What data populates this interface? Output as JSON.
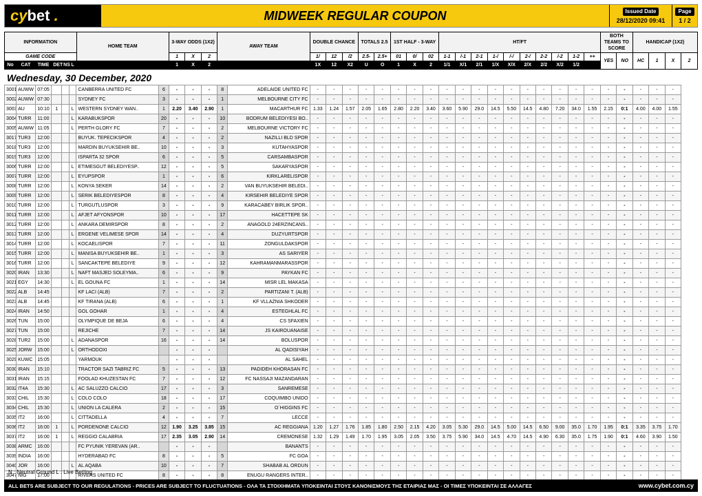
{
  "brand": {
    "logo_prefix": "cy",
    "logo_suffix": "bet",
    "title": "MIDWEEK REGULAR COUPON"
  },
  "meta": {
    "issued_label": "Issued Date",
    "issued_value": "28/12/2020 09:41",
    "page_label": "Page",
    "page_value": "1 / 2"
  },
  "date_heading": "Wednesday, 30 December, 2020",
  "header_groups": {
    "row1": {
      "information": "INFORMATION",
      "three_way": "3-WAY ODDS (1X2)",
      "double_chance": "DOUBLE CHANCE",
      "totals": "TOTALS 2.5",
      "first_half": "1ST HALF - 3-WAY",
      "htft": "HT/FT",
      "both_teams": "BOTH TEAMS TO SCORE",
      "handicap": "HANDICAP (1X2)"
    },
    "row2": {
      "gamecode": "GAME CODE",
      "home": "HOME TEAM",
      "one": "1",
      "x": "X",
      "two": "2",
      "away": "AWAY TEAM"
    },
    "row3": {
      "no": "No",
      "cat": "CAT",
      "time": "TIME",
      "det": "DET",
      "ns": "NS",
      "l": "L",
      "dc1": "1/",
      "dc2": "12",
      "dc3": "/2",
      "t_under": "2.5-",
      "t_over": "2.5+",
      "fh1": "01",
      "fh0": "0/",
      "fh2": "02",
      "hf_11": "1-1",
      "hf_n1": "/-1",
      "hf_21": "2-1",
      "hf_1n": "1-/",
      "hf_nn": "/-/",
      "hf_2n": "2-/",
      "hf_12": "1-2",
      "hf_n2": "/-2",
      "hf_22": "2-2",
      "hc_col": "HC",
      "hc1": "1",
      "hcx": "X",
      "hc2": "2",
      "away_sub_1X": "1X",
      "away_sub_12": "12",
      "away_sub_X2": "X2",
      "away_sub_U": "U",
      "away_sub_O": "O",
      "fh_sub_1": "1",
      "fh_sub_X": "X",
      "fh_sub_2": "2",
      "hf_sub": [
        "1/1",
        "X/1",
        "2/1",
        "1/X",
        "X/X",
        "2/X",
        "2/2",
        "X/2",
        "1/2"
      ],
      "plusplus": "++",
      "yes": "YES",
      "no_lbl": "NO"
    }
  },
  "colors": {
    "accent": "#f6c90e",
    "border": "#999",
    "shade": "#e2e2e2"
  },
  "rows": [
    {
      "no": "3001",
      "cat": "AUWW",
      "time": "07:05",
      "l": "",
      "home": "CANBERRA UNITED FC",
      "hn": "6",
      "o1": "-",
      "ox": "-",
      "o2": "-",
      "an": "8",
      "away": "ADELAIDE UNITED FC"
    },
    {
      "no": "3002",
      "cat": "AUWW",
      "time": "07:30",
      "l": "",
      "home": "SYDNEY FC",
      "hn": "3",
      "o1": "-",
      "ox": "-",
      "o2": "-",
      "an": "1",
      "away": "MELBOURNE CITY FC"
    },
    {
      "no": "3003",
      "cat": "AU",
      "time": "10:10",
      "det": "1",
      "l": "L",
      "home": "WESTERN SYDNEY WAN..",
      "hn": "1",
      "o1": "2.20",
      "ox": "3.40",
      "o2": "2.90",
      "an": "1",
      "away": "MACARTHUR FC",
      "rest": [
        "1.33",
        "1.24",
        "1.57",
        "2.05",
        "1.65",
        "2.80",
        "2.20",
        "3.40",
        "3.60",
        "5.90",
        "29.0",
        "14.5",
        "5.50",
        "14.5",
        "4.80",
        "7.20",
        "34.0",
        "1.55",
        "2.15",
        "0:1",
        "4.00",
        "4.00",
        "1.55"
      ]
    },
    {
      "no": "3004",
      "cat": "TURR",
      "time": "11:00",
      "l": "L",
      "home": "KARABUKSPOR",
      "hn": "20",
      "o1": "-",
      "ox": "-",
      "o2": "-",
      "an": "10",
      "away": "BODRUM BELEDIYESI BO.."
    },
    {
      "no": "3005",
      "cat": "AUWW",
      "time": "11:05",
      "l": "L",
      "home": "PERTH GLORY FC",
      "hn": "7",
      "o1": "-",
      "ox": "-",
      "o2": "-",
      "an": "2",
      "away": "MELBOURNE VICTORY FC"
    },
    {
      "no": "3017",
      "cat": "TUR3",
      "time": "12:00",
      "l": "",
      "home": "BUYUK. TEPECIKSPOR",
      "hn": "4",
      "o1": "-",
      "ox": "-",
      "o2": "-",
      "an": "2",
      "away": "NAZILLI BLD SPOR"
    },
    {
      "no": "3018",
      "cat": "TUR3",
      "time": "12:00",
      "l": "",
      "home": "MARDIN BUYUKSEHIR BE..",
      "hn": "10",
      "o1": "-",
      "ox": "-",
      "o2": "-",
      "an": "3",
      "away": "KUTAHYASPOR"
    },
    {
      "no": "3019",
      "cat": "TUR3",
      "time": "12:00",
      "l": "",
      "home": "ISPARTA 32 SPOR",
      "hn": "6",
      "o1": "-",
      "ox": "-",
      "o2": "-",
      "an": "5",
      "away": "CARSAMBASPOR"
    },
    {
      "no": "3006",
      "cat": "TURR",
      "time": "12:00",
      "l": "L",
      "home": "ETIMESGUT BELEDIYESP..",
      "hn": "12",
      "o1": "-",
      "ox": "-",
      "o2": "-",
      "an": "5",
      "away": "SAKARYASPOR"
    },
    {
      "no": "3007",
      "cat": "TURR",
      "time": "12:00",
      "l": "L",
      "home": "EYUPSPOR",
      "hn": "1",
      "o1": "-",
      "ox": "-",
      "o2": "-",
      "an": "6",
      "away": "KIRKLARELISPOR"
    },
    {
      "no": "3008",
      "cat": "TURR",
      "time": "12:00",
      "l": "L",
      "home": "KONYA SEKER",
      "hn": "14",
      "o1": "-",
      "ox": "-",
      "o2": "-",
      "an": "2",
      "away": "VAN BUYUKSEHIR BELEDI.."
    },
    {
      "no": "3009",
      "cat": "TURR",
      "time": "12:00",
      "l": "L",
      "home": "SERIK BELEDIYESPOR",
      "hn": "8",
      "o1": "-",
      "ox": "-",
      "o2": "-",
      "an": "4",
      "away": "KIRSEHIR BELEDIYE SPOR"
    },
    {
      "no": "3010",
      "cat": "TURR",
      "time": "12:00",
      "l": "L",
      "home": "TURGUTLUSPOR",
      "hn": "3",
      "o1": "-",
      "ox": "-",
      "o2": "-",
      "an": "9",
      "away": "KARACABEY BIRLIK SPOR.."
    },
    {
      "no": "3011",
      "cat": "TURR",
      "time": "12:00",
      "l": "L",
      "home": "AFJET AFYONSPOR",
      "hn": "10",
      "o1": "-",
      "ox": "-",
      "o2": "-",
      "an": "17",
      "away": "HACETTEPE SK"
    },
    {
      "no": "3012",
      "cat": "TURR",
      "time": "12:00",
      "l": "L",
      "home": "ANKARA DEMIRSPOR",
      "hn": "8",
      "o1": "-",
      "ox": "-",
      "o2": "-",
      "an": "2",
      "away": "ANAGOLD 24ERZINCANS.."
    },
    {
      "no": "3013",
      "cat": "TURR",
      "time": "12:00",
      "l": "L",
      "home": "ERGENE VELIMESE SPOR",
      "hn": "14",
      "o1": "-",
      "ox": "-",
      "o2": "-",
      "an": "4",
      "away": "DUZYURTSPOR"
    },
    {
      "no": "3014",
      "cat": "TURR",
      "time": "12:00",
      "l": "L",
      "home": "KOCAELISPOR",
      "hn": "7",
      "o1": "-",
      "ox": "-",
      "o2": "-",
      "an": "11",
      "away": "ZONGULDAKSPOR"
    },
    {
      "no": "3015",
      "cat": "TURR",
      "time": "12:00",
      "l": "L",
      "home": "MANISA BUYUKSEHIR BE..",
      "hn": "1",
      "o1": "-",
      "ox": "-",
      "o2": "-",
      "an": "3",
      "away": "AS SARIYER"
    },
    {
      "no": "3016",
      "cat": "TURR",
      "time": "12:00",
      "l": "L",
      "home": "SANCAKTEPE BELEDIYE",
      "hn": "9",
      "o1": "-",
      "ox": "-",
      "o2": "-",
      "an": "12",
      "away": "KAHRAMANMARASSPOR"
    },
    {
      "no": "3020",
      "cat": "IRAN",
      "time": "13:30",
      "l": "L",
      "home": "NAFT MASJED SOLEYMA..",
      "hn": "6",
      "o1": "-",
      "ox": "-",
      "o2": "-",
      "an": "9",
      "away": "PAYKAN FC"
    },
    {
      "no": "3021",
      "cat": "EGY",
      "time": "14:30",
      "l": "L",
      "home": "EL GOUNA FC",
      "hn": "1",
      "o1": "-",
      "ox": "-",
      "o2": "-",
      "an": "14",
      "away": "MISR LEL MAKASA"
    },
    {
      "no": "3022",
      "cat": "ALB",
      "time": "14:45",
      "l": "",
      "home": "KF LACI (ALB)",
      "hn": "7",
      "o1": "-",
      "ox": "-",
      "o2": "-",
      "an": "2",
      "away": "PARTIZANI T. (ALB)"
    },
    {
      "no": "3023",
      "cat": "ALB",
      "time": "14:45",
      "l": "",
      "home": "KF TIRANA (ALB)",
      "hn": "6",
      "o1": "-",
      "ox": "-",
      "o2": "-",
      "an": "1",
      "away": "KF VLLAZNIA SHKODER"
    },
    {
      "no": "3024",
      "cat": "IRAN",
      "time": "14:50",
      "l": "",
      "home": "GOL GOHAR",
      "hn": "1",
      "o1": "-",
      "ox": "-",
      "o2": "-",
      "an": "4",
      "away": "ESTEGHLAL FC"
    },
    {
      "no": "3026",
      "cat": "TUN",
      "time": "15:00",
      "l": "",
      "home": "OLYMPIQUE DE BEJA",
      "hn": "6",
      "o1": "-",
      "ox": "-",
      "o2": "-",
      "an": "4",
      "away": "CS SFAXIEN"
    },
    {
      "no": "3027",
      "cat": "TUN",
      "time": "15:00",
      "l": "",
      "home": "REJICHE",
      "hn": "7",
      "o1": "-",
      "ox": "-",
      "o2": "-",
      "an": "14",
      "away": "JS KAIROUANAISE"
    },
    {
      "no": "3028",
      "cat": "TUR2",
      "time": "15:00",
      "l": "L",
      "home": "ADANASPOR",
      "hn": "16",
      "o1": "-",
      "ox": "-",
      "o2": "-",
      "an": "14",
      "away": "BOLUSPOR"
    },
    {
      "no": "3025",
      "cat": "JORW",
      "time": "15:00",
      "l": "L",
      "home": "ORTHODOXI",
      "hn": "",
      "o1": "-",
      "ox": "-",
      "o2": "-",
      "an": "",
      "away": "AL QADISIYAH"
    },
    {
      "no": "3029",
      "cat": "KUWC",
      "time": "15:05",
      "l": "",
      "home": "YARMOUK",
      "hn": "",
      "o1": "-",
      "ox": "-",
      "o2": "-",
      "an": "",
      "away": "AL SAHEL"
    },
    {
      "no": "3030",
      "cat": "IRAN",
      "time": "15:10",
      "l": "",
      "home": "TRACTOR SAZI TABRIZ FC",
      "hn": "5",
      "o1": "-",
      "ox": "-",
      "o2": "-",
      "an": "13",
      "away": "PADIDEH KHORASAN FC"
    },
    {
      "no": "3031",
      "cat": "IRAN",
      "time": "15:15",
      "l": "",
      "home": "FOOLAD KHUZESTAN FC",
      "hn": "7",
      "o1": "-",
      "ox": "-",
      "o2": "-",
      "an": "12",
      "away": "FC NASSAJI MAZANDARAN"
    },
    {
      "no": "3032",
      "cat": "IT4A",
      "time": "15:30",
      "l": "L",
      "home": "AC SALUZZO CALCIO",
      "hn": "17",
      "o1": "-",
      "ox": "-",
      "o2": "-",
      "an": "3",
      "away": "SANREMESE"
    },
    {
      "no": "3033",
      "cat": "CHIL",
      "time": "15:30",
      "l": "L",
      "home": "COLO COLO",
      "hn": "18",
      "o1": "-",
      "ox": "-",
      "o2": "-",
      "an": "17",
      "away": "COQUIMBO UNIDO"
    },
    {
      "no": "3034",
      "cat": "CHIL",
      "time": "15:30",
      "l": "L",
      "home": "UNION LA CALERA",
      "hn": "2",
      "o1": "-",
      "ox": "-",
      "o2": "-",
      "an": "15",
      "away": "O`HIGGINS FC"
    },
    {
      "no": "3035",
      "cat": "IT2",
      "time": "16:00",
      "l": "L",
      "home": "CITTADELLA",
      "hn": "4",
      "o1": "-",
      "ox": "-",
      "o2": "-",
      "an": "7",
      "away": "LECCE"
    },
    {
      "no": "3036",
      "cat": "IT2",
      "time": "16:00",
      "det": "1",
      "l": "L",
      "home": "PORDENONE CALCIO",
      "hn": "12",
      "o1": "1.90",
      "ox": "3.25",
      "o2": "3.85",
      "an": "15",
      "away": "AC REGGIANA",
      "rest": [
        "1.20",
        "1.27",
        "1.76",
        "1.85",
        "1.80",
        "2.50",
        "2.15",
        "4.20",
        "3.05",
        "5.30",
        "29.0",
        "14.5",
        "5.00",
        "14.5",
        "6.50",
        "9.00",
        "35.0",
        "1.70",
        "1.95",
        "0:1",
        "3.35",
        "3.75",
        "1.70"
      ]
    },
    {
      "no": "3037",
      "cat": "IT2",
      "time": "16:00",
      "det": "1",
      "l": "L",
      "home": "REGGIO CALABRIA",
      "hn": "17",
      "o1": "2.35",
      "ox": "3.05",
      "o2": "2.90",
      "an": "14",
      "away": "CREMONESE",
      "rest": [
        "1.32",
        "1.29",
        "1.49",
        "1.70",
        "1.95",
        "3.05",
        "2.05",
        "3.50",
        "3.75",
        "5.90",
        "34.0",
        "14.5",
        "4.70",
        "14.5",
        "4.90",
        "6.30",
        "35.0",
        "1.75",
        "1.90",
        "0:1",
        "4.60",
        "3.90",
        "1.50"
      ]
    },
    {
      "no": "3038",
      "cat": "ARMC",
      "time": "16:00",
      "l": "",
      "home": "FC PYUNIK YEREVAN (AR..",
      "hn": "",
      "o1": "-",
      "ox": "-",
      "o2": "-",
      "an": "",
      "away": "BANANTS"
    },
    {
      "no": "3039",
      "cat": "INDIA",
      "time": "16:00",
      "l": "",
      "home": "HYDERABAD FC",
      "hn": "8",
      "o1": "-",
      "ox": "-",
      "o2": "-",
      "an": "5",
      "away": "FC GOA"
    },
    {
      "no": "3040",
      "cat": "JOR",
      "time": "16:00",
      "l": "L",
      "home": "AL AQABA",
      "hn": "10",
      "o1": "-",
      "ox": "-",
      "o2": "-",
      "an": "7",
      "away": "SHABAB AL ORDUN"
    },
    {
      "no": "3047",
      "cat": "NIG",
      "time": "17:00",
      "l": "",
      "home": "RIVERS UNITED FC",
      "hn": "8",
      "o1": "-",
      "ox": "-",
      "o2": "-",
      "an": "8",
      "away": "ENUGU RANGERS INTER.."
    },
    {
      "no": "3041",
      "cat": "IT2",
      "time": "17:00",
      "det": "1",
      "l": "L",
      "home": "SS MONZA 1912",
      "hn": "3",
      "o1": "1.65",
      "ox": "3.40",
      "o2": "5.00",
      "an": "1",
      "away": "SALERNITANA",
      "rest": [
        "1.11",
        "1.24",
        "2.02",
        "1.70",
        "1.95",
        "2.25",
        "2.15",
        "5.30",
        "2.55",
        "4.60",
        "30.0",
        "16.5",
        "5.00",
        "17.5",
        "9.30",
        "11.3",
        "35.0",
        "1.90",
        "1.75",
        "0:1",
        "2.80",
        "3.45",
        "2.00"
      ]
    }
  ],
  "legend": "N : Neutral Ground     L : Live Betting",
  "footer": {
    "text": "ALL BETS ARE SUBJECT TO OUR REGULATIONS - PRICES ARE SUBJECT TO FLUCTUATIONS - ΟΛΑ ΤΑ ΣΤΟΙΧΗΜΑΤΑ ΥΠΟΚΕΙΝΤΑΙ ΣΤΟΥΣ ΚΑΝΟΝΙΣΜΟΥΣ ΤΗΣ ΕΤΑΙΡΙΑΣ ΜΑΣ - ΟΙ ΤΙΜΕΣ ΥΠΟΚΕΙΝΤΑΙ ΣΕ ΑΛΛΑΓΕΣ",
    "site": "www.cybet.com.cy"
  }
}
